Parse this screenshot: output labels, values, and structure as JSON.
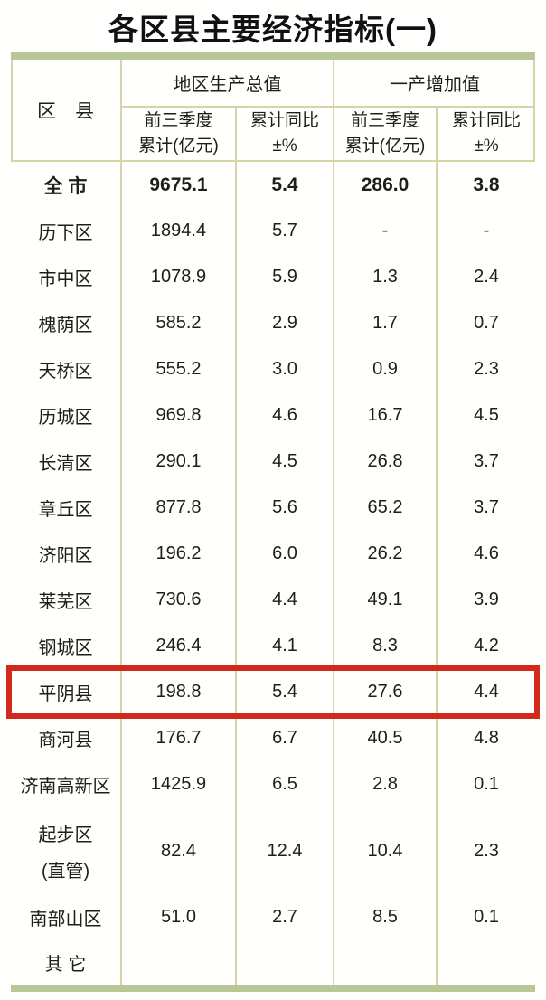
{
  "title": "各区县主要经济指标(一)",
  "table": {
    "corner_header": "区　县",
    "groups": [
      {
        "label": "地区生产总值"
      },
      {
        "label": "一产增加值"
      }
    ],
    "subheaders": [
      {
        "line1": "前三季度",
        "line2": "累计(亿元)"
      },
      {
        "line1": "累计同比",
        "line2": "±%"
      },
      {
        "line1": "前三季度",
        "line2": "累计(亿元)"
      },
      {
        "line1": "累计同比",
        "line2": "±%"
      }
    ],
    "rows": [
      {
        "label": "全 市",
        "bold": true,
        "values": [
          "9675.1",
          "5.4",
          "286.0",
          "3.8"
        ]
      },
      {
        "label": "历下区",
        "values": [
          "1894.4",
          "5.7",
          "-",
          "-"
        ]
      },
      {
        "label": "市中区",
        "values": [
          "1078.9",
          "5.9",
          "1.3",
          "2.4"
        ]
      },
      {
        "label": "槐荫区",
        "values": [
          "585.2",
          "2.9",
          "1.7",
          "0.7"
        ]
      },
      {
        "label": "天桥区",
        "values": [
          "555.2",
          "3.0",
          "0.9",
          "2.3"
        ]
      },
      {
        "label": "历城区",
        "values": [
          "969.8",
          "4.6",
          "16.7",
          "4.5"
        ]
      },
      {
        "label": "长清区",
        "values": [
          "290.1",
          "4.5",
          "26.8",
          "3.7"
        ]
      },
      {
        "label": "章丘区",
        "values": [
          "877.8",
          "5.6",
          "65.2",
          "3.7"
        ]
      },
      {
        "label": "济阳区",
        "values": [
          "196.2",
          "6.0",
          "26.2",
          "4.6"
        ]
      },
      {
        "label": "莱芜区",
        "values": [
          "730.6",
          "4.4",
          "49.1",
          "3.9"
        ]
      },
      {
        "label": "钢城区",
        "values": [
          "246.4",
          "4.1",
          "8.3",
          "4.2"
        ]
      },
      {
        "label": "平阴县",
        "highlighted": true,
        "values": [
          "198.8",
          "5.4",
          "27.6",
          "4.4"
        ]
      },
      {
        "label": "商河县",
        "values": [
          "176.7",
          "6.7",
          "40.5",
          "4.8"
        ]
      },
      {
        "label": "济南高新区",
        "values": [
          "1425.9",
          "6.5",
          "2.8",
          "0.1"
        ]
      },
      {
        "label": "起步区",
        "label2": "(直管)",
        "tall": true,
        "values": [
          "82.4",
          "12.4",
          "10.4",
          "2.3"
        ]
      },
      {
        "label": "南部山区",
        "values": [
          "51.0",
          "2.7",
          "8.5",
          "0.1"
        ]
      },
      {
        "label": "其 它",
        "last": true,
        "values": [
          "",
          "",
          "",
          ""
        ]
      }
    ]
  },
  "colors": {
    "accent_green": "#b8c795",
    "grid_line": "#d8d4a8",
    "highlight_red": "#d3281e",
    "text": "#1d1d1b"
  }
}
